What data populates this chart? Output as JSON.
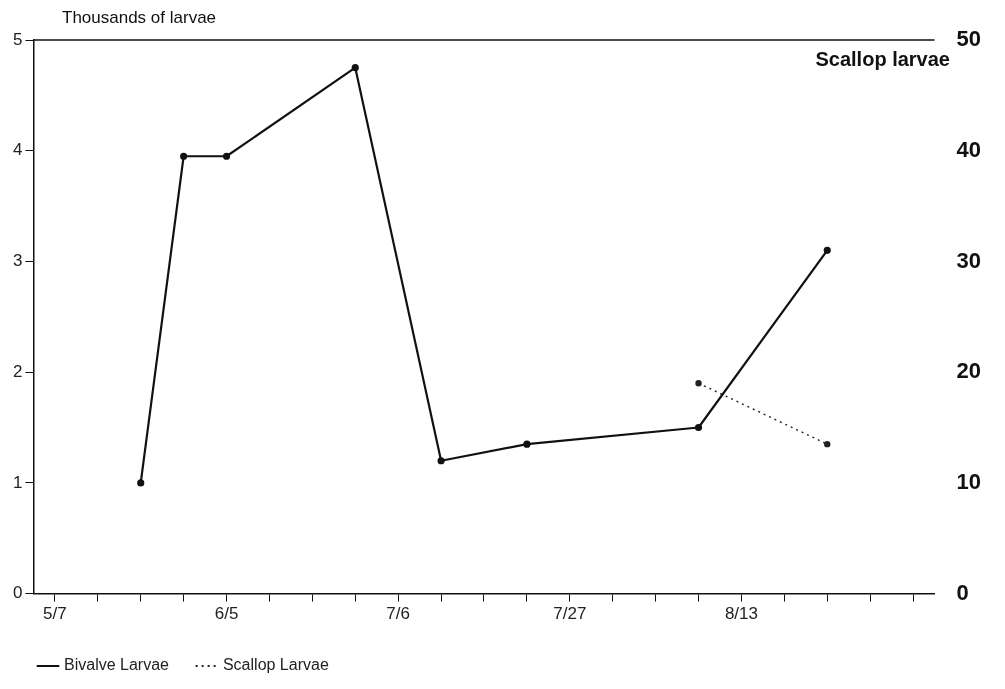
{
  "chart_data": {
    "type": "line",
    "ylabel": "Thousands of larvae",
    "y2label": "Scallop larvae",
    "categories": [
      "5/7",
      null,
      null,
      null,
      "6/5",
      null,
      null,
      null,
      "7/6",
      null,
      null,
      null,
      "7/27",
      null,
      null,
      null,
      "8/13",
      null,
      null,
      null,
      null
    ],
    "series": [
      {
        "name": "Bivalve Larvae",
        "color": "#111111",
        "values": [
          null,
          null,
          1.0,
          3.95,
          3.95,
          null,
          null,
          4.75,
          null,
          1.2,
          null,
          1.35,
          null,
          null,
          null,
          1.5,
          null,
          null,
          3.1,
          null,
          null
        ],
        "line_style": "solid"
      },
      {
        "name": "Scallop Larvae",
        "color": "#222222",
        "axis": "y2",
        "values": [
          null,
          null,
          null,
          null,
          null,
          null,
          null,
          null,
          null,
          null,
          null,
          null,
          null,
          null,
          null,
          19,
          null,
          null,
          13.5,
          null,
          null
        ],
        "line_style": "dotted"
      }
    ],
    "ylim": [
      0,
      5
    ],
    "yticks": [
      0,
      1,
      2,
      3,
      4,
      5
    ],
    "y2lim": [
      0,
      50
    ],
    "y2ticks": [
      0,
      10,
      20,
      30,
      40,
      50
    ],
    "grid": false,
    "legend": "bottom left",
    "marker": "circle"
  }
}
